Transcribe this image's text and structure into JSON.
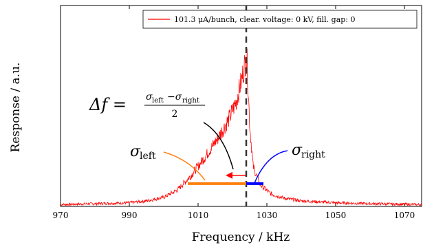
{
  "chart_data": {
    "type": "line",
    "xlabel": "Frequency / kHz",
    "ylabel": "Response / a.u.",
    "xlim": [
      970,
      1075
    ],
    "ylim": [
      0,
      1.1
    ],
    "xticks": [
      970,
      990,
      1010,
      1030,
      1050,
      1070
    ],
    "grid": false,
    "legend_position": "top-right",
    "series": [
      {
        "name": "101.3 μA/bunch, clear. voltage: 0 kV, fill. gap: 0",
        "color": "#ff0000",
        "x": [
          970,
          980,
          990,
          995,
          1000,
          1004,
          1008,
          1012,
          1016,
          1019,
          1021,
          1022.5,
          1023.5,
          1024.2,
          1025,
          1026,
          1028,
          1031,
          1035,
          1040,
          1050,
          1060,
          1075
        ],
        "y": [
          0.01,
          0.015,
          0.02,
          0.03,
          0.05,
          0.09,
          0.17,
          0.27,
          0.38,
          0.48,
          0.57,
          0.68,
          0.77,
          0.81,
          0.45,
          0.22,
          0.12,
          0.07,
          0.045,
          0.03,
          0.02,
          0.015,
          0.01
        ]
      }
    ],
    "annotations": {
      "peak_line_x": 1024,
      "sigma_left_range": [
        1007,
        1024
      ],
      "sigma_right_range": [
        1024,
        1029
      ],
      "sigma_level": 0.125,
      "arrow_range": [
        1024,
        1018
      ],
      "arrow_level": 0.17
    }
  },
  "labels": {
    "sigma_left_symbol": "σ",
    "sigma_left_sub": "left",
    "sigma_right_symbol": "σ",
    "sigma_right_sub": "right",
    "delta_f": "Δf =",
    "frac_num_a": "σ",
    "frac_num_a_sub": "left",
    "frac_num_minus": "−σ",
    "frac_num_b_sub": "right",
    "frac_den": "2"
  },
  "colors": {
    "signal": "#ff0000",
    "sigma_left": "#ff7f0e",
    "sigma_right": "#0000ff",
    "arrow": "#ff0000",
    "peak_line": "#333333"
  }
}
